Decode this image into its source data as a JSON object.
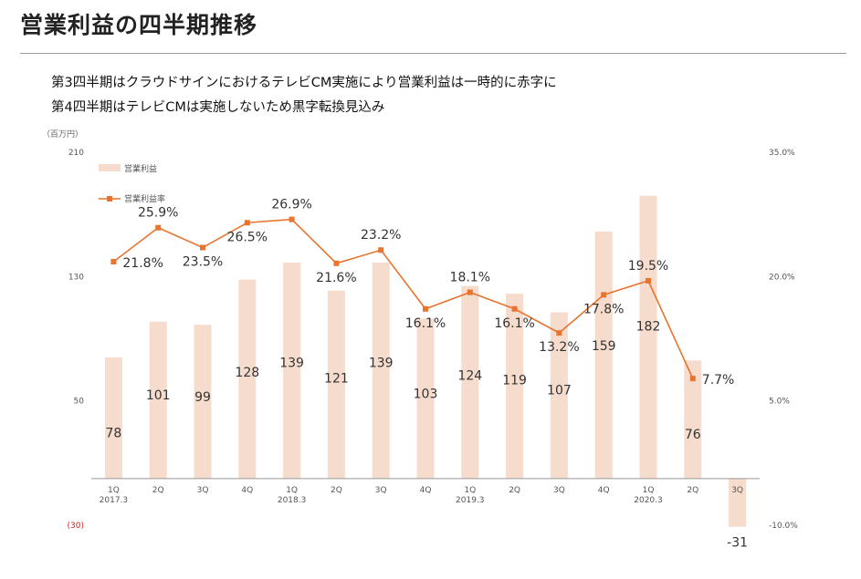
{
  "page": {
    "title": "営業利益の四半期推移",
    "subtitle_lines": [
      "第3四半期はクラウドサインにおけるテレビCM実施により営業利益は一時的に赤字に",
      "第4四半期はテレビCMは実施しないため黒字転換見込み"
    ]
  },
  "colors": {
    "bar": "#f6dccd",
    "line": "#e8742f",
    "axis": "#999999",
    "negative_label": "#e02020"
  },
  "chart_data": {
    "type": "bar+line",
    "unit_label": "（百万円）",
    "categories": [
      {
        "quarter": "1Q",
        "year": "2017.3"
      },
      {
        "quarter": "2Q",
        "year": ""
      },
      {
        "quarter": "3Q",
        "year": ""
      },
      {
        "quarter": "4Q",
        "year": ""
      },
      {
        "quarter": "1Q",
        "year": "2018.3"
      },
      {
        "quarter": "2Q",
        "year": ""
      },
      {
        "quarter": "3Q",
        "year": ""
      },
      {
        "quarter": "4Q",
        "year": ""
      },
      {
        "quarter": "1Q",
        "year": "2019.3"
      },
      {
        "quarter": "2Q",
        "year": ""
      },
      {
        "quarter": "3Q",
        "year": ""
      },
      {
        "quarter": "4Q",
        "year": ""
      },
      {
        "quarter": "1Q",
        "year": "2020.3"
      },
      {
        "quarter": "2Q",
        "year": ""
      },
      {
        "quarter": "3Q",
        "year": ""
      }
    ],
    "series": [
      {
        "name": "営業利益",
        "type": "bar",
        "axis": "left",
        "values": [
          78,
          101,
          99,
          128,
          139,
          121,
          139,
          103,
          124,
          119,
          107,
          159,
          182,
          76,
          -31
        ],
        "labels": [
          "78",
          "101",
          "99",
          "128",
          "139",
          "121",
          "139",
          "103",
          "124",
          "119",
          "107",
          "159",
          "182",
          "76",
          "-31"
        ]
      },
      {
        "name": "営業利益率",
        "type": "line",
        "axis": "right",
        "values": [
          21.8,
          25.9,
          23.5,
          26.5,
          26.9,
          21.6,
          23.2,
          16.1,
          18.1,
          16.1,
          13.2,
          17.8,
          19.5,
          7.7,
          null
        ],
        "labels": [
          "21.8%",
          "25.9%",
          "23.5%",
          "26.5%",
          "26.9%",
          "21.6%",
          "23.2%",
          "16.1%",
          "18.1%",
          "16.1%",
          "13.2%",
          "17.8%",
          "19.5%",
          "7.7%",
          ""
        ]
      }
    ],
    "left_axis": {
      "ylim": [
        -30,
        210
      ],
      "ticks": [
        210,
        130,
        50,
        -30
      ],
      "tick_labels": [
        "210",
        "130",
        "50",
        "(30)"
      ]
    },
    "right_axis": {
      "ylim": [
        -10,
        35
      ],
      "ticks": [
        35,
        20,
        5,
        -10
      ],
      "tick_labels": [
        "35.0%",
        "20.0%",
        "5.0%",
        "-10.0%"
      ]
    },
    "legend": [
      {
        "label": "営業利益",
        "kind": "bar"
      },
      {
        "label": "営業利益率",
        "kind": "line"
      }
    ],
    "legend_position": "top-left"
  }
}
